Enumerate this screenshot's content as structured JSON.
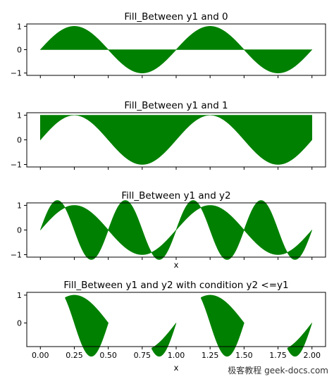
{
  "chart_data": {
    "type": "area",
    "x_range": [
      0,
      2
    ],
    "x_ticks": [
      0.0,
      0.25,
      0.5,
      0.75,
      1.0,
      1.25,
      1.5,
      1.75,
      2.0
    ],
    "x_tick_labels": [
      "0.00",
      "0.25",
      "0.50",
      "0.75",
      "1.00",
      "1.25",
      "1.50",
      "1.75",
      "2.00"
    ],
    "fill_color": "#008000",
    "series_definitions": {
      "y1": "sin(2*pi*x)",
      "y2": "1.2*sin(4*pi*x)"
    },
    "panels": [
      {
        "title": "Fill_Between y1 and 0",
        "lower": "zero",
        "upper": "y1",
        "where": "all",
        "xlabel": "",
        "y_ticks": [
          -1,
          0,
          1
        ],
        "y_tick_labels": [
          "−1",
          "0",
          "1"
        ],
        "ylim": [
          -1.1,
          1.1
        ],
        "show_x_labels": false
      },
      {
        "title": "Fill_Between y1 and 1",
        "lower": "y1",
        "upper": "one",
        "where": "all",
        "xlabel": "",
        "y_ticks": [
          -1,
          0,
          1
        ],
        "y_tick_labels": [
          "−1",
          "0",
          "1"
        ],
        "ylim": [
          -1.1,
          1.1
        ],
        "show_x_labels": false
      },
      {
        "title": "Fill_Between y1 and y2",
        "lower": "y1",
        "upper": "y2",
        "where": "all",
        "xlabel": "x",
        "y_ticks": [
          -1,
          0,
          1
        ],
        "y_tick_labels": [
          "−1",
          "0",
          "1"
        ],
        "ylim": [
          -1.1,
          1.1
        ],
        "show_x_labels": false
      },
      {
        "title": "Fill_Between y1 and y2 with condition y2 <=y1",
        "lower": "y2",
        "upper": "y1",
        "where": "y2<=y1",
        "xlabel": "x",
        "y_ticks": [
          0,
          1
        ],
        "y_tick_labels": [
          "0",
          "1"
        ],
        "ylim": [
          -0.85,
          1.1
        ],
        "show_x_labels": true
      }
    ]
  },
  "watermark": "极客教程 geek-docs.com"
}
